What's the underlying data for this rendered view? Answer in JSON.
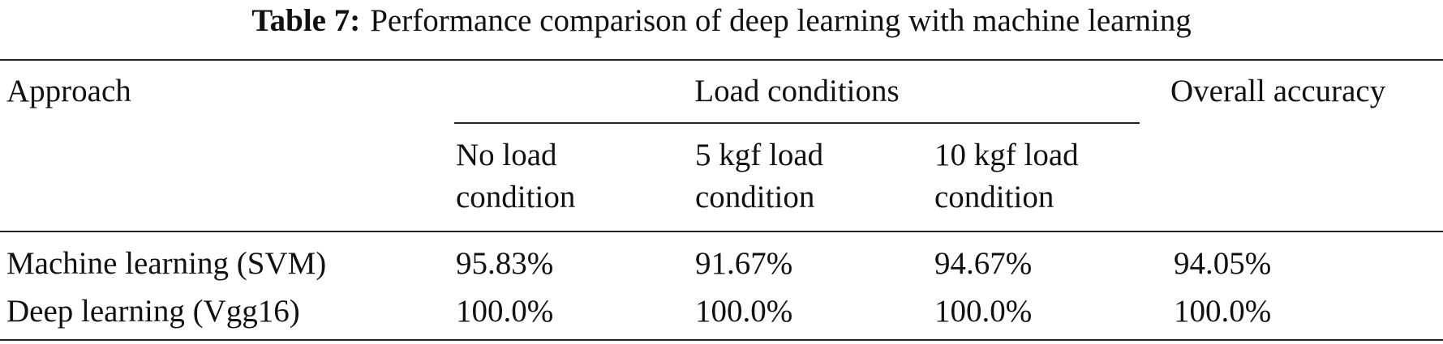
{
  "title": {
    "label": "Table 7:",
    "text": "Performance comparison of deep learning with machine learning"
  },
  "table": {
    "header": {
      "approach": "Approach",
      "group": "Load conditions",
      "overall": "Overall accuracy"
    },
    "subheaders": [
      "No load condition",
      "5 kgf load condition",
      "10 kgf load condition"
    ],
    "rows": [
      [
        "Machine learning (SVM)",
        "95.83%",
        "91.67%",
        "94.67%",
        "94.05%"
      ],
      [
        "Deep learning (Vgg16)",
        "100.0%",
        "100.0%",
        "100.0%",
        "100.0%"
      ]
    ]
  }
}
